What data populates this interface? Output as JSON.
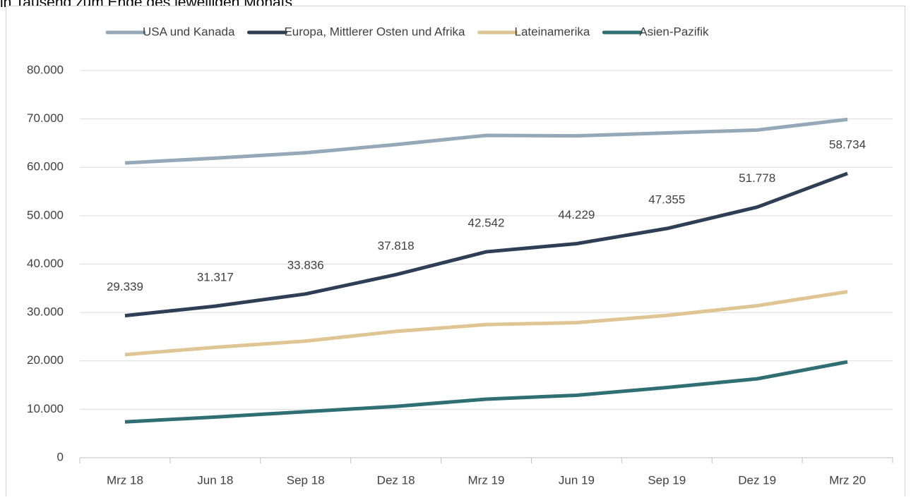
{
  "chart_data": {
    "type": "line",
    "subtitle": "in Tausend zum Ende des jeweiligen Monats",
    "categories": [
      "Mrz 18",
      "Jun 18",
      "Sep 18",
      "Dez 18",
      "Mrz 19",
      "Jun 19",
      "Sep 19",
      "Dez 19",
      "Mrz 20"
    ],
    "series": [
      {
        "name": "USA und Kanada",
        "color": "#94a8b8",
        "values": [
          60900,
          61900,
          63000,
          64700,
          66600,
          66500,
          67100,
          67700,
          69900
        ]
      },
      {
        "name": "Europa, Mittlerer Osten und Afrika",
        "color": "#2e3f55",
        "values": [
          29339,
          31317,
          33836,
          37818,
          42542,
          44229,
          47355,
          51778,
          58734
        ],
        "value_labels": [
          "29.339",
          "31.317",
          "33.836",
          "37.818",
          "42.542",
          "44.229",
          "47.355",
          "51.778",
          "58.734"
        ]
      },
      {
        "name": "Lateinamerika",
        "color": "#dfc594",
        "values": [
          21300,
          22800,
          24100,
          26100,
          27500,
          27900,
          29400,
          31400,
          34300
        ]
      },
      {
        "name": "Asien-Pazifik",
        "color": "#2f6e72",
        "values": [
          7400,
          8400,
          9500,
          10600,
          12100,
          12900,
          14500,
          16300,
          19800
        ]
      }
    ],
    "ylim": [
      0,
      80000
    ],
    "yticks": [
      0,
      {
        "value": 10000,
        "label": "10.000"
      },
      {
        "value": 20000,
        "label": "20.000"
      },
      {
        "value": 30000,
        "label": "30.000"
      },
      {
        "value": 40000,
        "label": "40.000"
      },
      {
        "value": 50000,
        "label": "50.000"
      },
      {
        "value": 60000,
        "label": "60.000"
      },
      {
        "value": 70000,
        "label": "70.000"
      },
      {
        "value": 80000,
        "label": "80.000"
      }
    ],
    "grid": true,
    "legend": "top"
  }
}
